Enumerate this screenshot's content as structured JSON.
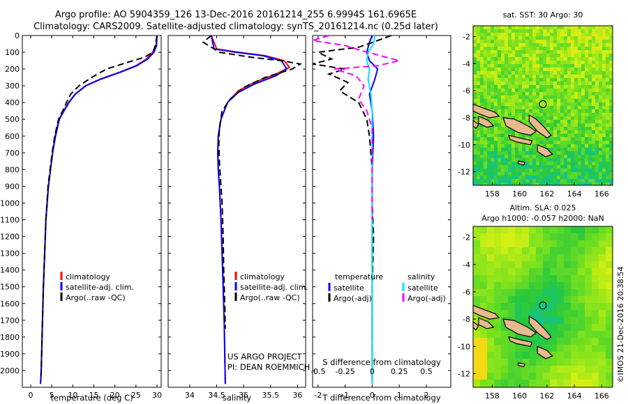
{
  "header": {
    "line1": "Argo profile: AO 5904359_126 13-Dec-2016 20161214_255 6.9994S 161.6965E",
    "line2": "Climatology: CARS2009. Satellite-adjusted climatology: synTS_20161214.nc (0.25d later)"
  },
  "credits": {
    "project": "US ARGO PROJECT",
    "pi": "PI: DEAN ROEMMICH",
    "stamp": "©IMOS 21-Dec-2016 20:38:54"
  },
  "colors": {
    "climatology": "#ff0000",
    "satellite": "#0000ff",
    "argo": "#000000",
    "sal_satellite": "#00e5ff",
    "sal_argo": "#ff00ff",
    "land": "#e8b98f"
  },
  "chart_data": [
    {
      "type": "line",
      "xlabel": "temperature (deg C)",
      "ylabel": "",
      "xlim": [
        -2,
        31
      ],
      "ylim": [
        2100,
        0
      ],
      "xticks": [
        0,
        5,
        10,
        15,
        20,
        25,
        30
      ],
      "yticks": [
        0,
        100,
        200,
        300,
        400,
        500,
        600,
        700,
        800,
        900,
        1000,
        1100,
        1200,
        1300,
        1400,
        1500,
        1600,
        1700,
        1800,
        1900,
        2000
      ],
      "legend": [
        "climatology",
        "satellite-adj. clim.",
        "Argo(..raw -QC)"
      ],
      "series": [
        {
          "name": "climatology",
          "color": "#ff0000",
          "dash": "",
          "x": [
            30.0,
            29.8,
            29.0,
            27.5,
            25.0,
            21.0,
            16.5,
            13.0,
            10.5,
            9.0,
            7.8,
            6.7,
            5.8,
            5.2,
            4.7,
            4.2,
            3.6,
            3.3,
            3.0,
            2.8,
            2.6,
            2.5,
            2.4,
            2.3
          ],
          "y": [
            0,
            60,
            100,
            140,
            180,
            220,
            260,
            300,
            350,
            400,
            450,
            500,
            600,
            700,
            800,
            900,
            1100,
            1300,
            1500,
            1700,
            1900,
            2000,
            2050,
            2080
          ]
        },
        {
          "name": "satellite-adj. clim.",
          "color": "#0000ff",
          "dash": "",
          "x": [
            30.0,
            29.9,
            29.3,
            27.8,
            25.2,
            21.2,
            16.7,
            13.1,
            10.6,
            9.1,
            7.9,
            6.8,
            5.9,
            5.2,
            4.7,
            4.2,
            3.6,
            3.3,
            3.0,
            2.8,
            2.6,
            2.5,
            2.4,
            2.3
          ],
          "y": [
            0,
            60,
            100,
            140,
            180,
            220,
            260,
            300,
            350,
            400,
            450,
            500,
            600,
            700,
            800,
            900,
            1100,
            1300,
            1500,
            1700,
            1900,
            2000,
            2050,
            2080
          ]
        },
        {
          "name": "Argo(..raw -QC)",
          "color": "#000000",
          "dash": "9,5",
          "x": [
            30.0,
            29.6,
            29.0,
            27.0,
            23.0,
            18.0,
            14.5,
            11.5,
            9.5,
            8.5,
            7.6,
            6.6,
            5.7,
            5.1,
            4.6,
            4.1,
            3.6,
            3.3,
            3.0,
            2.8,
            2.6,
            2.5,
            2.4
          ],
          "y": [
            0,
            60,
            100,
            130,
            160,
            200,
            250,
            300,
            350,
            400,
            450,
            500,
            600,
            700,
            800,
            900,
            1100,
            1300,
            1500,
            1700,
            1900,
            2000,
            2050
          ]
        }
      ]
    },
    {
      "type": "line",
      "xlabel": "salinity",
      "ylabel": "",
      "xlim": [
        33.6,
        36.15
      ],
      "ylim": [
        2100,
        0
      ],
      "xticks": [
        34,
        34.5,
        35,
        35.5,
        36
      ],
      "legend": [
        "climatology",
        "satellite-adj. clim.",
        "Argo(..raw -QC)"
      ],
      "series": [
        {
          "name": "climatology",
          "color": "#ff0000",
          "dash": "",
          "x": [
            34.4,
            34.5,
            34.9,
            35.4,
            35.75,
            35.85,
            35.6,
            35.2,
            34.9,
            34.7,
            34.58,
            34.53,
            34.52,
            34.53,
            34.55,
            34.58,
            34.6,
            34.62,
            34.64,
            34.65,
            34.66
          ],
          "y": [
            0,
            80,
            100,
            120,
            150,
            190,
            230,
            280,
            330,
            400,
            500,
            600,
            700,
            800,
            900,
            1100,
            1300,
            1500,
            1700,
            1900,
            2080
          ]
        },
        {
          "name": "satellite-adj. clim.",
          "color": "#0000ff",
          "dash": "",
          "x": [
            34.4,
            34.45,
            34.85,
            35.35,
            35.7,
            35.8,
            35.6,
            35.2,
            34.9,
            34.7,
            34.58,
            34.53,
            34.52,
            34.53,
            34.55,
            34.58,
            34.6,
            34.62,
            34.64,
            34.65,
            34.66
          ],
          "y": [
            0,
            80,
            100,
            120,
            150,
            200,
            240,
            290,
            340,
            400,
            500,
            600,
            700,
            800,
            900,
            1100,
            1300,
            1500,
            1700,
            1900,
            2080
          ]
        },
        {
          "name": "Argo(..raw -QC)",
          "color": "#000000",
          "dash": "9,5",
          "x": [
            34.4,
            34.25,
            34.55,
            35.15,
            35.7,
            36.05,
            35.9,
            35.4,
            35.0,
            34.75,
            34.6,
            34.55,
            34.54,
            34.55,
            34.57,
            34.6,
            34.62,
            34.63,
            34.65,
            34.66
          ],
          "y": [
            0,
            40,
            100,
            130,
            150,
            170,
            200,
            250,
            310,
            380,
            450,
            550,
            650,
            750,
            850,
            1000,
            1200,
            1400,
            1600,
            1750
          ]
        }
      ]
    },
    {
      "type": "line",
      "xlabel": "T difference from climatology",
      "toplabel": "S difference from climatology",
      "xlim": [
        -2.2,
        2.9
      ],
      "ylim": [
        2100,
        0
      ],
      "xticks": [
        -2,
        -1,
        0,
        1,
        2
      ],
      "sticks": [
        -0.5,
        -0.25,
        0,
        0.25,
        0.5
      ],
      "legend_titles": [
        "temperature",
        "salinity"
      ],
      "legend": [
        "satellite",
        "Argo(-adj)",
        "satellite",
        "Argo(-adj)"
      ],
      "series": [
        {
          "name": "satellite",
          "group": "temperature",
          "color": "#0000ff",
          "dash": "",
          "x": [
            0.0,
            -0.1,
            -0.2,
            -0.1,
            0.2,
            0.1,
            -0.1,
            0.0,
            0.05,
            0.0,
            0.0,
            0.0,
            0.0,
            0.0,
            0.0
          ],
          "y": [
            0,
            40,
            100,
            150,
            200,
            260,
            350,
            450,
            600,
            800,
            1000,
            1300,
            1600,
            1900,
            2080
          ]
        },
        {
          "name": "Argo(-adj)",
          "group": "temperature",
          "color": "#000000",
          "dash": "9,5",
          "x": [
            0.7,
            0.2,
            -0.5,
            -2.0,
            -1.5,
            -2.2,
            -1.0,
            -1.6,
            -0.9,
            -1.2,
            -0.5,
            -0.2,
            -0.1,
            0.0,
            0.0,
            0.05,
            0.0,
            0.0,
            0.0
          ],
          "y": [
            0,
            30,
            70,
            100,
            140,
            170,
            200,
            230,
            280,
            330,
            400,
            500,
            600,
            800,
            1000,
            1200,
            1500,
            1800,
            2050
          ]
        },
        {
          "name": "satellite",
          "group": "salinity",
          "color": "#00e5ff",
          "dash": "",
          "x": [
            0.1,
            0.05,
            -0.15,
            -0.2,
            -0.1,
            -0.15,
            -0.05,
            0.0,
            0.0,
            0.0,
            0.0,
            0.0,
            0.0,
            0.0
          ],
          "y": [
            0,
            50,
            100,
            150,
            200,
            260,
            350,
            450,
            600,
            800,
            1100,
            1400,
            1700,
            2080
          ]
        },
        {
          "name": "Argo(-adj)",
          "group": "salinity",
          "color": "#ff00ff",
          "dash": "9,5",
          "x": [
            -1.6,
            -2.2,
            -1.0,
            -0.4,
            1.0,
            0.2,
            -1.4,
            -0.6,
            -0.3,
            -0.5,
            -0.2,
            0.0,
            0.0,
            0.0,
            0.0
          ],
          "y": [
            0,
            30,
            60,
            90,
            150,
            180,
            200,
            240,
            300,
            380,
            450,
            550,
            700,
            900,
            1100
          ]
        }
      ]
    },
    {
      "type": "heatmap",
      "title": "sat. SST: 30 Argo: 30",
      "xlim": [
        156.6,
        166.8
      ],
      "ylim": [
        -13.0,
        -1.2
      ],
      "xticks": [
        158,
        160,
        162,
        164,
        166
      ],
      "yticks": [
        -2,
        -4,
        -6,
        -8,
        -10,
        -12
      ],
      "marker": {
        "lon": 161.7,
        "lat": -7.0
      }
    },
    {
      "type": "heatmap",
      "title_line1": "Altim. SLA: 0.025",
      "title_line2": "Argo h1000: -0.057 h2000: NaN",
      "xlim": [
        156.6,
        166.8
      ],
      "ylim": [
        -13.0,
        -1.2
      ],
      "xticks": [
        158,
        160,
        162,
        164,
        166
      ],
      "yticks": [
        -2,
        -4,
        -6,
        -8,
        -10,
        -12
      ],
      "marker": {
        "lon": 161.7,
        "lat": -7.0
      }
    }
  ]
}
